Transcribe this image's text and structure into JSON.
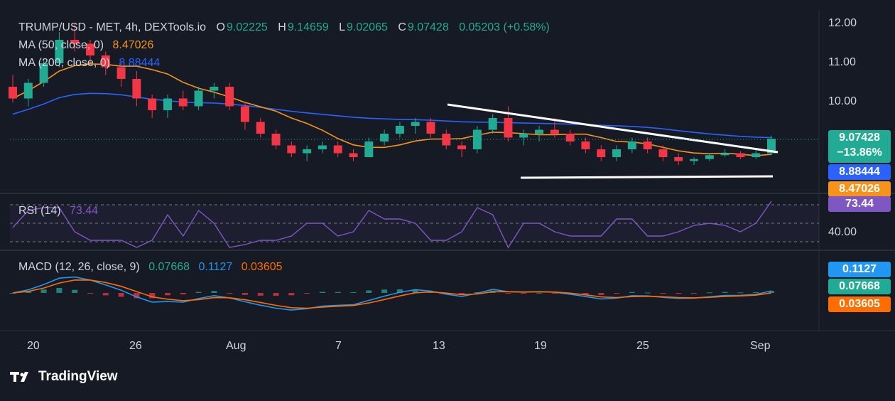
{
  "header": {
    "symbol": "TRUMP/USD - MET, 4h, DEXTools.io",
    "o_key": "O",
    "o_val": "9.02225",
    "h_key": "H",
    "h_val": "9.14659",
    "l_key": "L",
    "l_val": "9.02065",
    "c_key": "C",
    "c_val": "9.07428",
    "change": "0.05203 (+0.58%)"
  },
  "ma50": {
    "label": "MA (50, close, 0)",
    "value": "8.47026",
    "color": "#f7931a"
  },
  "ma200": {
    "label": "MA (200, close, 0)",
    "value": "8.88444",
    "color": "#2962ff"
  },
  "rsi": {
    "label": "RSI (14)",
    "value": "73.44",
    "tag": "73.44",
    "level": "40.00",
    "color": "#7e57c2"
  },
  "macd": {
    "label": "MACD (12, 26, close, 9)",
    "v1": "0.07668",
    "v2": "0.1127",
    "v3": "0.03605",
    "macd_color": "#2196f3",
    "signal_color": "#ff6d00",
    "hist_color": "#26a69a"
  },
  "price_tags": {
    "last": "9.07428",
    "last_change": "−13.86%",
    "ma200": "8.88444",
    "ma50": "8.47026",
    "macd_line": "0.1127",
    "macd_hist": "0.07668",
    "macd_signal": "0.03605"
  },
  "colors": {
    "up": "#22ab94",
    "down": "#f23645",
    "background": "#161a25",
    "trendline": "#ffffff"
  },
  "price_axis": [
    "12.00",
    "11.00",
    "10.00"
  ],
  "time_axis": [
    "20",
    "26",
    "Aug",
    "7",
    "13",
    "19",
    "25",
    "Sep"
  ],
  "brand": "TradingView",
  "chart_data": {
    "type": "candlestick",
    "title": "TRUMP/USD - MET, 4h, DEXTools.io",
    "ylim": [
      8.2,
      12.2
    ],
    "series": [
      {
        "name": "MA (50, close, 0)",
        "last": 8.47026
      },
      {
        "name": "MA (200, close, 0)",
        "last": 8.88444
      }
    ],
    "last_close": 9.07428,
    "candles_approx": [
      [
        10.4,
        10.7,
        10.0,
        10.1
      ],
      [
        10.1,
        10.6,
        9.9,
        10.5
      ],
      [
        10.5,
        11.1,
        10.4,
        11.0
      ],
      [
        11.0,
        11.8,
        10.9,
        11.6
      ],
      [
        11.6,
        12.0,
        11.3,
        11.5
      ],
      [
        11.5,
        11.6,
        11.0,
        11.2
      ],
      [
        11.2,
        11.3,
        10.7,
        10.9
      ],
      [
        10.9,
        11.0,
        10.4,
        10.6
      ],
      [
        10.6,
        10.8,
        9.9,
        10.1
      ],
      [
        10.1,
        10.2,
        9.6,
        9.8
      ],
      [
        9.8,
        10.2,
        9.6,
        10.1
      ],
      [
        10.1,
        10.3,
        9.8,
        9.9
      ],
      [
        9.9,
        10.4,
        9.8,
        10.3
      ],
      [
        10.3,
        10.5,
        10.1,
        10.4
      ],
      [
        10.4,
        10.5,
        9.8,
        9.9
      ],
      [
        9.9,
        10.0,
        9.3,
        9.5
      ],
      [
        9.5,
        9.6,
        9.1,
        9.2
      ],
      [
        9.2,
        9.3,
        8.8,
        8.9
      ],
      [
        8.9,
        9.0,
        8.6,
        8.7
      ],
      [
        8.7,
        8.9,
        8.5,
        8.8
      ],
      [
        8.8,
        9.0,
        8.7,
        8.9
      ],
      [
        8.9,
        9.0,
        8.6,
        8.7
      ],
      [
        8.7,
        8.8,
        8.5,
        8.6
      ],
      [
        8.6,
        9.1,
        8.6,
        9.0
      ],
      [
        9.0,
        9.3,
        8.9,
        9.2
      ],
      [
        9.2,
        9.5,
        9.1,
        9.4
      ],
      [
        9.4,
        9.6,
        9.2,
        9.5
      ],
      [
        9.5,
        9.6,
        9.1,
        9.2
      ],
      [
        9.2,
        9.3,
        8.8,
        8.9
      ],
      [
        8.9,
        9.0,
        8.6,
        8.8
      ],
      [
        8.8,
        9.4,
        8.7,
        9.3
      ],
      [
        9.3,
        9.7,
        9.2,
        9.6
      ],
      [
        9.6,
        9.9,
        9.0,
        9.1
      ],
      [
        9.1,
        9.3,
        8.9,
        9.2
      ],
      [
        9.2,
        9.4,
        9.0,
        9.3
      ],
      [
        9.3,
        9.6,
        9.1,
        9.2
      ],
      [
        9.2,
        9.3,
        8.9,
        9.0
      ],
      [
        9.0,
        9.1,
        8.7,
        8.8
      ],
      [
        8.8,
        8.9,
        8.5,
        8.6
      ],
      [
        8.6,
        8.9,
        8.5,
        8.8
      ],
      [
        8.8,
        9.1,
        8.7,
        9.0
      ],
      [
        9.0,
        9.1,
        8.7,
        8.8
      ],
      [
        8.8,
        8.9,
        8.5,
        8.6
      ],
      [
        8.6,
        8.7,
        8.4,
        8.5
      ],
      [
        8.5,
        8.6,
        8.4,
        8.55
      ],
      [
        8.55,
        8.7,
        8.5,
        8.65
      ],
      [
        8.65,
        8.8,
        8.6,
        8.7
      ],
      [
        8.7,
        8.75,
        8.55,
        8.6
      ],
      [
        8.6,
        8.8,
        8.55,
        8.7
      ],
      [
        8.7,
        9.15,
        8.65,
        9.07
      ]
    ]
  }
}
